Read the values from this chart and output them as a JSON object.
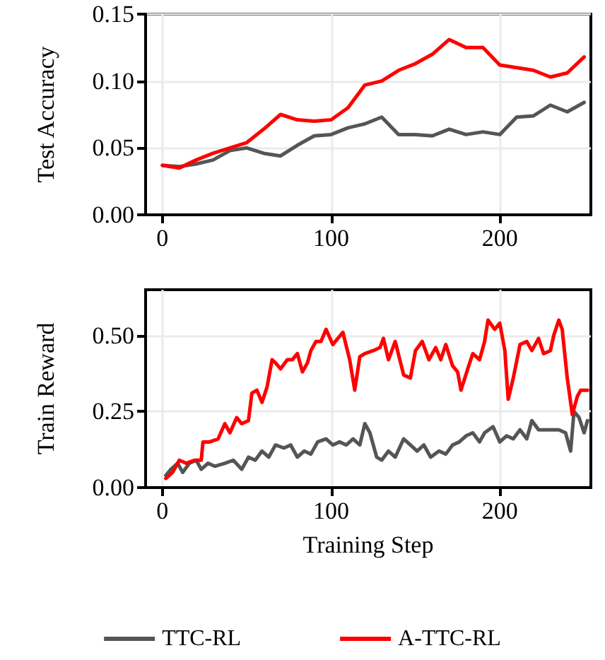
{
  "chart_data": [
    {
      "type": "line",
      "ylabel": "Test Accuracy",
      "xlim": [
        -10,
        254
      ],
      "xticks": [
        0,
        100,
        200
      ],
      "ylim": [
        0,
        0.15
      ],
      "yticks": [
        {
          "value": 0,
          "label": "0.00"
        },
        {
          "value": 0.05,
          "label": "0.05"
        },
        {
          "value": 0.1,
          "label": "0.10"
        },
        {
          "value": 0.15,
          "label": "0.15"
        }
      ],
      "grid": true,
      "legend": false,
      "marker": "none",
      "line_style": "solid",
      "series": [
        {
          "color": "#555555",
          "x": [
            0,
            10,
            20,
            30,
            40,
            50,
            60,
            70,
            80,
            90,
            100,
            110,
            120,
            130,
            140,
            150,
            160,
            170,
            180,
            190,
            200,
            210,
            220,
            230,
            240,
            250
          ],
          "values": [
            0.037,
            0.036,
            0.038,
            0.041,
            0.048,
            0.05,
            0.046,
            0.044,
            0.052,
            0.059,
            0.06,
            0.065,
            0.068,
            0.073,
            0.06,
            0.06,
            0.059,
            0.064,
            0.06,
            0.062,
            0.06,
            0.073,
            0.074,
            0.082,
            0.077,
            0.084
          ]
        },
        {
          "color": "#ff0000",
          "x": [
            0,
            10,
            20,
            30,
            40,
            50,
            60,
            70,
            80,
            90,
            100,
            110,
            120,
            130,
            140,
            150,
            160,
            170,
            180,
            190,
            200,
            210,
            220,
            230,
            240,
            250
          ],
          "values": [
            0.037,
            0.035,
            0.041,
            0.046,
            0.05,
            0.054,
            0.064,
            0.075,
            0.071,
            0.07,
            0.071,
            0.08,
            0.097,
            0.1,
            0.108,
            0.113,
            0.12,
            0.131,
            0.125,
            0.125,
            0.112,
            0.11,
            0.108,
            0.103,
            0.106,
            0.118
          ]
        }
      ]
    },
    {
      "type": "line",
      "xlabel": "Training Step",
      "ylabel": "Train Reward",
      "xlim": [
        -10,
        254
      ],
      "xticks": [
        0,
        100,
        200
      ],
      "ylim": [
        0,
        0.65
      ],
      "yticks": [
        {
          "value": 0,
          "label": "0.00"
        },
        {
          "value": 0.25,
          "label": "0.25"
        },
        {
          "value": 0.5,
          "label": "0.50"
        }
      ],
      "grid": true,
      "legend": "bottom",
      "marker": "none",
      "line_style": "solid",
      "series": [
        {
          "name": "TTC-RL",
          "color": "#555555",
          "x": [
            2,
            5,
            9,
            12,
            16,
            20,
            23,
            27,
            31,
            37,
            42,
            47,
            51,
            55,
            59,
            63,
            67,
            72,
            76,
            80,
            84,
            88,
            92,
            97,
            101,
            105,
            109,
            113,
            117,
            120,
            123,
            127,
            130,
            134,
            138,
            143,
            147,
            151,
            155,
            159,
            164,
            168,
            172,
            176,
            180,
            184,
            188,
            191,
            196,
            200,
            204,
            208,
            212,
            216,
            219,
            223,
            229,
            235,
            239,
            242,
            244,
            247,
            250,
            252
          ],
          "values": [
            0.04,
            0.06,
            0.08,
            0.05,
            0.08,
            0.09,
            0.06,
            0.08,
            0.07,
            0.08,
            0.09,
            0.06,
            0.1,
            0.09,
            0.12,
            0.1,
            0.14,
            0.13,
            0.14,
            0.1,
            0.12,
            0.11,
            0.15,
            0.16,
            0.14,
            0.15,
            0.14,
            0.16,
            0.14,
            0.21,
            0.18,
            0.1,
            0.09,
            0.12,
            0.1,
            0.16,
            0.14,
            0.12,
            0.14,
            0.1,
            0.12,
            0.11,
            0.14,
            0.15,
            0.17,
            0.18,
            0.15,
            0.18,
            0.2,
            0.15,
            0.17,
            0.16,
            0.19,
            0.16,
            0.22,
            0.19,
            0.19,
            0.19,
            0.18,
            0.12,
            0.25,
            0.23,
            0.18,
            0.22
          ]
        },
        {
          "name": "A-TTC-RL",
          "color": "#ff0000",
          "x": [
            2,
            6,
            10,
            14,
            19,
            23,
            24,
            28,
            33,
            37,
            40,
            44,
            47,
            51,
            53,
            56,
            59,
            62,
            65,
            67,
            70,
            74,
            77,
            80,
            83,
            86,
            88,
            91,
            94,
            97,
            101,
            104,
            107,
            111,
            114,
            117,
            120,
            125,
            129,
            131,
            134,
            138,
            143,
            147,
            150,
            154,
            158,
            162,
            165,
            168,
            172,
            175,
            177,
            181,
            184,
            188,
            191,
            193,
            197,
            200,
            203,
            205,
            208,
            212,
            216,
            219,
            223,
            226,
            230,
            232,
            235,
            237,
            240,
            243,
            246,
            248,
            252
          ],
          "values": [
            0.03,
            0.05,
            0.09,
            0.08,
            0.09,
            0.09,
            0.15,
            0.15,
            0.16,
            0.21,
            0.18,
            0.23,
            0.21,
            0.22,
            0.31,
            0.32,
            0.28,
            0.33,
            0.42,
            0.41,
            0.39,
            0.42,
            0.42,
            0.44,
            0.38,
            0.41,
            0.45,
            0.48,
            0.48,
            0.52,
            0.47,
            0.49,
            0.51,
            0.42,
            0.32,
            0.43,
            0.44,
            0.45,
            0.46,
            0.49,
            0.42,
            0.48,
            0.37,
            0.36,
            0.45,
            0.48,
            0.42,
            0.46,
            0.42,
            0.47,
            0.4,
            0.38,
            0.32,
            0.39,
            0.44,
            0.42,
            0.48,
            0.55,
            0.52,
            0.54,
            0.45,
            0.29,
            0.36,
            0.47,
            0.48,
            0.45,
            0.49,
            0.44,
            0.45,
            0.5,
            0.55,
            0.52,
            0.36,
            0.24,
            0.3,
            0.32,
            0.32
          ]
        }
      ]
    }
  ]
}
